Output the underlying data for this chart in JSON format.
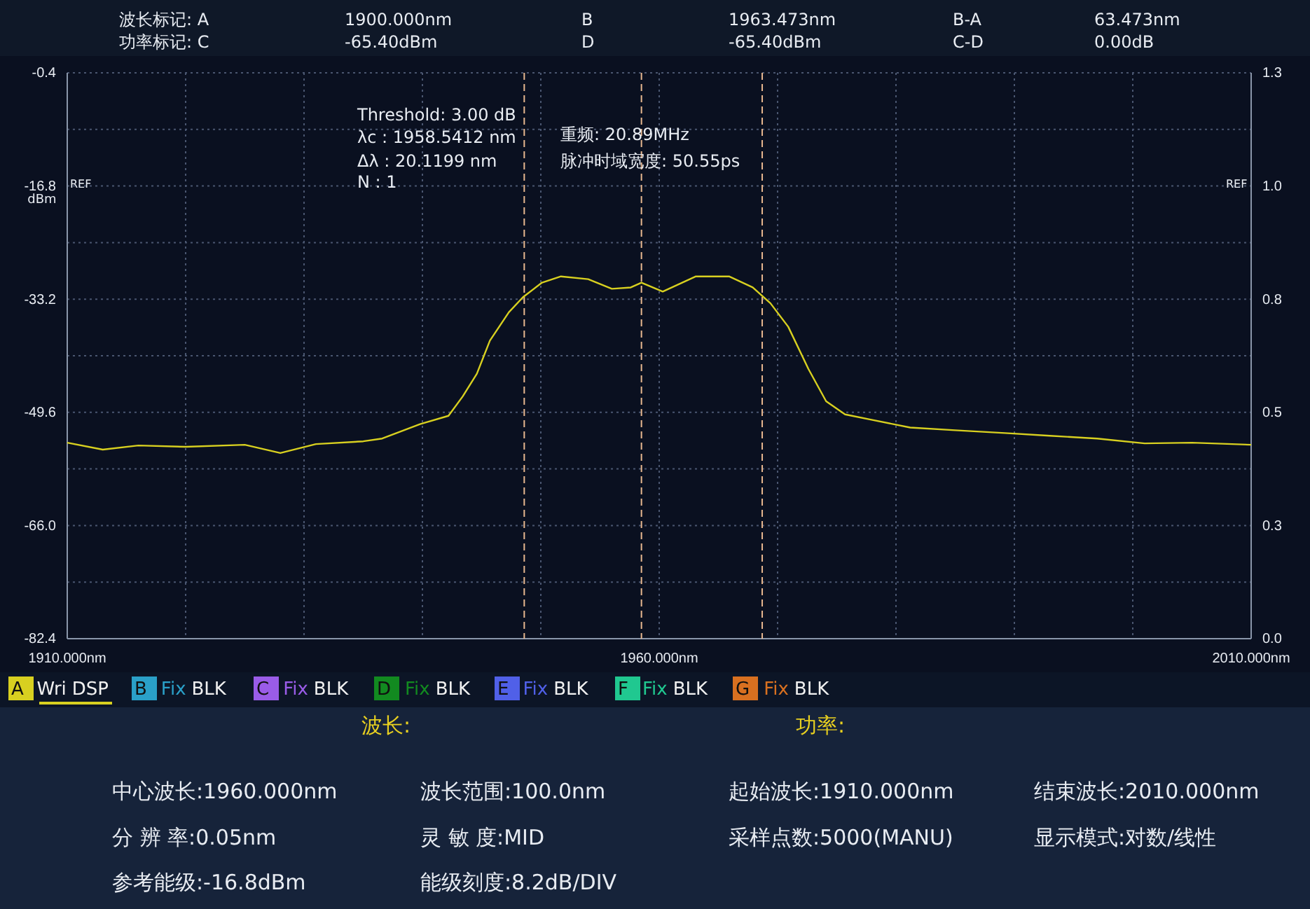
{
  "chart_data": {
    "type": "line",
    "ylabel": "dBm",
    "xlim": [
      1910,
      2010
    ],
    "xticks": [
      {
        "value": 1910,
        "label": "1910.000nm"
      },
      {
        "value": 1960,
        "label": "1960.000nm"
      },
      {
        "value": 2010,
        "label": "2010.000nm"
      }
    ],
    "ylim": [
      -82.4,
      -0.4
    ],
    "yticks": [
      -82.4,
      {
        "value": -66,
        "label": "-66.0"
      },
      -49.6,
      -33.2,
      -16.8,
      -0.4
    ],
    "y2lim": [
      0,
      1.3
    ],
    "y2ticks": [
      {
        "value": 0,
        "label": "0.0"
      },
      {
        "value": 0.26,
        "label": "0.3"
      },
      {
        "value": 0.52,
        "label": "0.5"
      },
      {
        "value": 0.78,
        "label": "0.8"
      },
      {
        "value": 1.04,
        "label": "1.0"
      },
      1.3
    ],
    "grid": true,
    "x": [
      1910,
      1913,
      1916,
      1920,
      1925,
      1928,
      1931,
      1935,
      1936.6,
      1939.8,
      1942.2,
      1943.4,
      1944.6,
      1945.7,
      1947.3,
      1948.5,
      1950.1,
      1951.7,
      1954.0,
      1956.0,
      1957.6,
      1958.5,
      1960.3,
      1963.1,
      1965.9,
      1967.9,
      1969.4,
      1970.9,
      1972.6,
      1974.1,
      1975.7,
      1978.0,
      1981.2,
      1985,
      1989.2,
      1993,
      1997.0,
      2001.0,
      2005,
      2010
    ],
    "series": [
      {
        "color": "#d8d020",
        "values": [
          -54.0,
          -55.0,
          -54.4,
          -54.6,
          -54.3,
          -55.5,
          -54.2,
          -53.8,
          -53.4,
          -51.3,
          -50.1,
          -47.3,
          -44.0,
          -39.2,
          -35.1,
          -32.9,
          -30.8,
          -29.9,
          -30.3,
          -31.7,
          -31.5,
          -30.8,
          -32.1,
          -29.9,
          -29.9,
          -31.5,
          -33.8,
          -37.2,
          -43.3,
          -48.0,
          -49.9,
          -50.7,
          -51.8,
          -52.2,
          -52.6,
          -53.0,
          -53.4,
          -54.1,
          -54.0,
          -54.3
        ]
      }
    ],
    "ref_lines": [
      {
        "axis": "x",
        "value": 1948.6,
        "color": "#e8b890",
        "line_style": "dashed"
      },
      {
        "axis": "x",
        "value": 1958.5,
        "color": "#e8b890",
        "line_style": "dashed"
      },
      {
        "axis": "x",
        "value": 1968.7,
        "color": "#e8b890",
        "line_style": "dashed"
      }
    ],
    "annotations": [
      "波长标记:  A",
      "1900.000nm",
      "B",
      "1963.473nm",
      "B-A",
      "63.473nm",
      "功率标记:  C",
      "-65.40dBm",
      "D",
      "-65.40dBm",
      "C-D",
      "0.00dB",
      "REF",
      "REF",
      "Threshold: 3.00 dB",
      "λc  : 1958.5412 nm",
      "Δλ  : 20.1199 nm",
      "N    : 1",
      "重频:  20.89MHz",
      "脉冲时域宽度:  50.55ps",
      "A Wri DSP",
      "B Fix BLK",
      "C Fix BLK",
      "D Fix BLK",
      "E Fix BLK",
      "F Fix BLK",
      "G Fix BLK",
      "波长:",
      "功率:",
      "中心波长:1960.000nm",
      "波长范围:100.0nm",
      "起始波长:1910.000nm",
      "结束波长:2010.000nm",
      "分  辨  率:0.05nm",
      "灵  敏  度:MID",
      "采样点数:5000(MANU)",
      "显示模式:对数/线性",
      "参考能级:-16.8dBm",
      "能级刻度:8.2dB/DIV"
    ]
  }
}
